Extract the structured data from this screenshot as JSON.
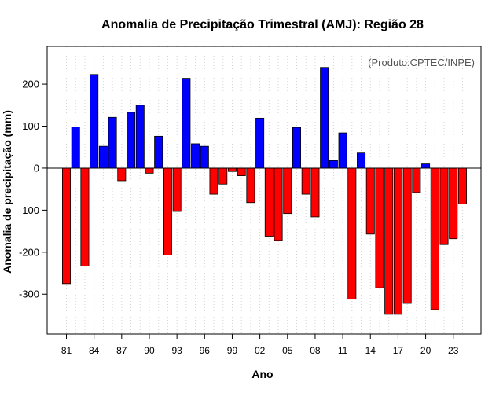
{
  "chart_data": {
    "type": "bar",
    "title": "Anomalia de Precipitação Trimestral (AMJ): Região 28",
    "xlabel": "Ano",
    "ylabel": "Anomalia de precipitação (mm)",
    "annotation": "(Produto:CPTEC/INPE)",
    "ylim": [
      -395,
      290
    ],
    "yticks": [
      -300,
      -200,
      -100,
      0,
      100,
      200
    ],
    "grid": "vertical dotted",
    "positive_color": "#0000ff",
    "negative_color": "#ff0000",
    "categories": [
      "1981",
      "1982",
      "1983",
      "1984",
      "1985",
      "1986",
      "1987",
      "1988",
      "1989",
      "1990",
      "1991",
      "1992",
      "1993",
      "1994",
      "1995",
      "1996",
      "1997",
      "1998",
      "1999",
      "2000",
      "2001",
      "2002",
      "2003",
      "2004",
      "2005",
      "2006",
      "2007",
      "2008",
      "2009",
      "2010",
      "2011",
      "2012",
      "2013",
      "2014",
      "2015",
      "2016",
      "2017",
      "2018",
      "2019",
      "2020",
      "2021",
      "2022",
      "2023",
      "2024"
    ],
    "values": [
      -275,
      98,
      -233,
      223,
      52,
      121,
      -30,
      133,
      150,
      -12,
      76,
      -207,
      -103,
      214,
      58,
      52,
      -62,
      -38,
      -8,
      -18,
      -82,
      119,
      -162,
      -172,
      -108,
      97,
      -62,
      -116,
      240,
      18,
      84,
      -312,
      36,
      -157,
      -285,
      -348,
      -348,
      -322,
      -58,
      10,
      -337,
      -182,
      -168,
      -85
    ],
    "xtick_labels": [
      {
        "index": 0,
        "label": "81"
      },
      {
        "index": 3,
        "label": "84"
      },
      {
        "index": 6,
        "label": "87"
      },
      {
        "index": 9,
        "label": "90"
      },
      {
        "index": 12,
        "label": "93"
      },
      {
        "index": 15,
        "label": "96"
      },
      {
        "index": 18,
        "label": "99"
      },
      {
        "index": 21,
        "label": "02"
      },
      {
        "index": 24,
        "label": "05"
      },
      {
        "index": 27,
        "label": "08"
      },
      {
        "index": 30,
        "label": "11"
      },
      {
        "index": 33,
        "label": "14"
      },
      {
        "index": 36,
        "label": "17"
      },
      {
        "index": 39,
        "label": "20"
      },
      {
        "index": 42,
        "label": "23"
      }
    ]
  }
}
